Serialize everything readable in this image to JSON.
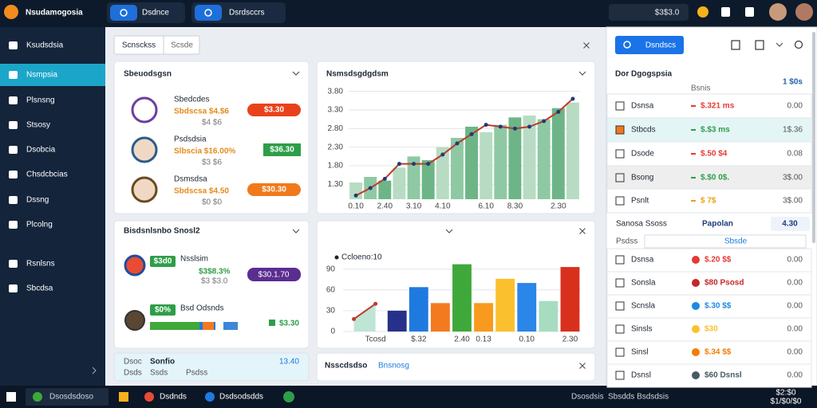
{
  "topbar": {
    "app_title": "Nsudamogosia",
    "tabs": [
      "Dsdnce",
      "Dsrdsccrs"
    ],
    "search": "$3$3.0"
  },
  "sidebar": {
    "items": [
      "Ksudsdsia",
      "Nsmpsia",
      "Plsnsng",
      "Stsosy",
      "Dsobcia",
      "Chsdcbcias",
      "Dssng",
      "Plcolng",
      "Rsnlsns",
      "Sbcdsa"
    ],
    "active": 1
  },
  "view_tabs": [
    "Scnsckss",
    "Scsde"
  ],
  "card_people": {
    "title": "Sbeuodsgsn",
    "rows": [
      {
        "name": "Sbedcdes",
        "detail": "Sbdscsa $4.$6",
        "note": "$4 $6",
        "badge": "$3.30",
        "color": "#e8421c"
      },
      {
        "name": "Psdsdsia",
        "detail": "Slbscia $16.00%",
        "note": "$3 $6",
        "badge": "$36.30",
        "color": "#2e9e48"
      },
      {
        "name": "Dsmsdsa",
        "detail": "Sbdscsa $4.50",
        "note": "$0 $0",
        "badge": "$30.30",
        "color": "#f07a1a"
      }
    ]
  },
  "trend_chart": {
    "type": "bar",
    "title": "Nsmsdsgdgdsm",
    "categories": [
      "0.10",
      null,
      "2.40",
      null,
      "3.10",
      null,
      "4.10",
      null,
      null,
      "6.10",
      null,
      "8.30",
      null,
      null,
      "2.30",
      null
    ],
    "ylim": [
      0.9,
      3.9
    ],
    "yticks": [
      {
        "value": 1.3,
        "label": "1.30"
      },
      {
        "value": 1.8,
        "label": "1.80"
      },
      {
        "value": 2.3,
        "label": "2.30"
      },
      {
        "value": 2.8,
        "label": "2.80"
      },
      {
        "value": 3.3,
        "label": "3.30"
      },
      {
        "value": 3.8,
        "label": "3.80"
      }
    ],
    "grid": true,
    "series": [
      {
        "type": "bar",
        "colors": [
          "#b7dcc3",
          "#8fc9a3",
          "#6db587"
        ],
        "values": [
          1.35,
          1.5,
          1.4,
          1.75,
          2.05,
          1.95,
          2.3,
          2.55,
          2.85,
          2.7,
          2.9,
          3.1,
          3.15,
          3.05,
          3.35,
          3.5
        ]
      },
      {
        "type": "line",
        "color": "#c0392b",
        "marker_color": "#1f3a7a",
        "values": [
          1.0,
          1.2,
          1.45,
          1.85,
          1.85,
          1.85,
          2.1,
          2.4,
          2.65,
          2.9,
          2.85,
          2.8,
          2.85,
          3.0,
          3.25,
          3.6
        ]
      }
    ]
  },
  "card_budget": {
    "title": "Bisdsnlsnbo Snosl2",
    "rows": [
      {
        "badge": "$3d0",
        "name": "Nsslsim",
        "detail": "$3$8.3%",
        "note": "$3 $3.0",
        "pill": "$30.1.70",
        "color": "#5b2d90"
      },
      {
        "badge": "$0%",
        "name": "Bsd Odsnds",
        "value": "$3.30",
        "color": "#2e9e48"
      }
    ]
  },
  "mix_chart": {
    "type": "bar",
    "legend": "Ccloeno:10",
    "categories": [
      null,
      "Tcosd",
      null,
      "$.32",
      null,
      "2.40",
      "0.13",
      null,
      "0.10",
      null,
      "2.30"
    ],
    "ylim": [
      0,
      100
    ],
    "yticks": [
      0,
      30,
      60,
      90
    ],
    "grid": true,
    "series": [
      {
        "type": "bar",
        "colors": [
          "#27318a",
          "#1f7ae0",
          "#f47a20",
          "#3fa83a",
          "#f79a1e",
          "#fbc02d",
          "#2a86e8",
          "#a7dcc0",
          "#d9301e"
        ],
        "values": [
          null,
          null,
          30,
          64,
          41,
          97,
          41,
          76,
          70,
          44,
          93
        ]
      },
      {
        "type": "area",
        "color": "#c0392b",
        "fill": "#bfe5d6",
        "values": [
          18,
          40,
          null,
          null,
          null,
          null,
          null,
          null,
          null,
          null,
          null
        ]
      }
    ]
  },
  "strip": {
    "label": "Dsoc",
    "title": "Sonfio",
    "value": "13.40",
    "columns": [
      "Dsds",
      "Ssds",
      "Psdss"
    ]
  },
  "card_news": {
    "title": "Nsscdsdso",
    "link": "Bnsnosg"
  },
  "right_panel": {
    "button": "Dsndscs",
    "title": "Dor Dgogspsia",
    "subtitle": "Bsnis",
    "total": "1 $0s",
    "rows": [
      {
        "name": "Dsnsa",
        "value": "$.321 ms",
        "right": "0.00",
        "color": "#e53935"
      },
      {
        "name": "Stbcds",
        "value": "$.$3 ms",
        "right": "1$.36",
        "color": "#2e9e48"
      },
      {
        "name": "Dsode",
        "value": "$.50 $4",
        "right": "0.08",
        "color": "#e53935"
      },
      {
        "name": "Bsong",
        "value": "$.$0 0$.",
        "right": "3$.00",
        "color": "#2e9e48"
      },
      {
        "name": "Psnlt",
        "value": "$ 7$",
        "right": "3$.00",
        "color": "#e8a21c"
      }
    ],
    "section": {
      "title": "Sanosa Ssoss",
      "name": "Papolan",
      "value": "4.30",
      "label": "Psdss",
      "field": "Sbsde"
    },
    "items": [
      {
        "name": "Dsnsa",
        "value": "$.20 $$",
        "right": "0.00",
        "color": "#e53935"
      },
      {
        "name": "Sonsla",
        "value": "$80 Psosd",
        "right": "0.00",
        "color": "#c62828"
      },
      {
        "name": "Scnsla",
        "value": "$.30 $$",
        "right": "0.00",
        "color": "#1e88e5"
      },
      {
        "name": "Sinsls",
        "value": "$30",
        "right": "0.00",
        "color": "#fbc02d"
      },
      {
        "name": "Sinsl",
        "value": "$.34 $$",
        "right": "0.00",
        "color": "#f57c00"
      },
      {
        "name": "Dsnsl",
        "value": "$60 Dsnsl",
        "right": "0.00",
        "color": "#455a64"
      }
    ]
  },
  "taskbar": {
    "apps": [
      "Dsosdsdoso",
      "Dsdnds",
      "Dsdsodsdds"
    ],
    "status": [
      "Dsosdsis",
      "Sbsdds Bsdsdsis"
    ],
    "time": "$2:$0",
    "date": "$1/$0/$0"
  }
}
